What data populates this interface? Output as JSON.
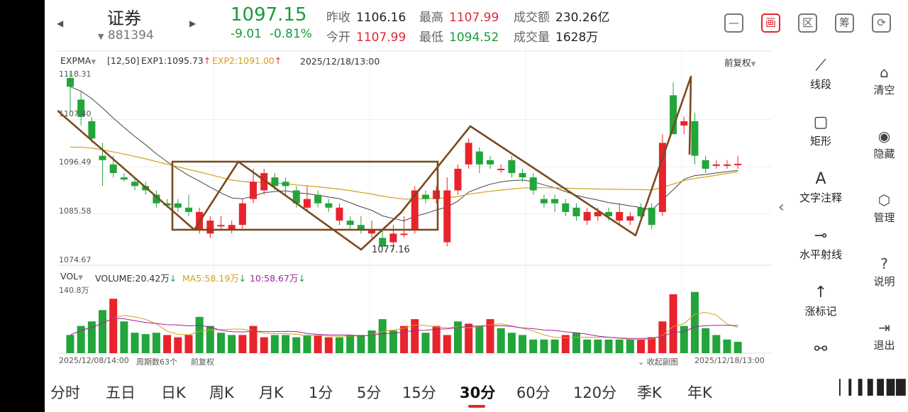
{
  "header": {
    "stock_name": "证券",
    "stock_code": "881394",
    "price": "1097.15",
    "change": "-9.01",
    "change_pct": "-0.81%",
    "quotes": [
      {
        "key": "昨收",
        "val": "1106.16",
        "color": "dark"
      },
      {
        "key": "最高",
        "val": "1107.99",
        "color": "red"
      },
      {
        "key": "成交额",
        "val": "230.26亿",
        "color": "dark"
      },
      {
        "key": "今开",
        "val": "1107.99",
        "color": "red"
      },
      {
        "key": "最低",
        "val": "1094.52",
        "color": "green"
      },
      {
        "key": "成交量",
        "val": "1628万",
        "color": "dark"
      }
    ],
    "icons": [
      {
        "name": "minimize-icon",
        "glyph": "—"
      },
      {
        "name": "draw-mode-icon",
        "glyph": "画"
      },
      {
        "name": "region-icon",
        "glyph": "区"
      },
      {
        "name": "chips-icon",
        "glyph": "筹"
      },
      {
        "name": "rotate-screen-icon",
        "glyph": "⟳"
      }
    ]
  },
  "chart_labels": {
    "indicator": "EXPMA",
    "params": "[12,50]",
    "exp1": "EXP1:1095.73",
    "exp2": "EXP2:1091.00",
    "datetime": "2025/12/18/13:00",
    "adjust": "前复权",
    "y_ticks": [
      "1118.31",
      "1107.40",
      "1096.49",
      "1085.58",
      "1074.67"
    ],
    "low_mark": "1077.16",
    "vol_indicator": "VOL",
    "volume": "VOLUME:20.42万",
    "ma5": "MA5:58.19万",
    "ma10": "10:58.67万",
    "vol_max": "140.8万",
    "start_date": "2025/12/08/14:00",
    "period_count": "周期数63个",
    "adjust2": "前复权",
    "collapse": "收起副图",
    "end_date": "2025/12/18/13:00"
  },
  "chart_data": {
    "type": "candlestick",
    "ylim": [
      1074.67,
      1118.31
    ],
    "candles": [
      [
        1117,
        1115,
        1118.3,
        1109
      ],
      [
        1112,
        1108,
        1114,
        1106
      ],
      [
        1107,
        1103,
        1108,
        1102
      ],
      [
        1099,
        1098,
        1102,
        1092
      ],
      [
        1097,
        1095,
        1099,
        1094
      ],
      [
        1094,
        1093.5,
        1095,
        1093
      ],
      [
        1093,
        1092,
        1094,
        1091
      ],
      [
        1092,
        1091,
        1093,
        1090
      ],
      [
        1090,
        1088,
        1091,
        1087
      ],
      [
        1088,
        1087.5,
        1089,
        1087
      ],
      [
        1088,
        1087,
        1089,
        1086
      ],
      [
        1087,
        1086,
        1090,
        1085
      ],
      [
        1082,
        1086,
        1087,
        1081
      ],
      [
        1081,
        1084,
        1085,
        1080
      ],
      [
        1083,
        1083,
        1085,
        1082
      ],
      [
        1082,
        1083,
        1084,
        1081
      ],
      [
        1083,
        1088,
        1089,
        1082
      ],
      [
        1089,
        1093,
        1096,
        1088
      ],
      [
        1091,
        1095,
        1096,
        1090
      ],
      [
        1094,
        1092,
        1095,
        1091
      ],
      [
        1093,
        1092,
        1094,
        1090
      ],
      [
        1091,
        1088,
        1092,
        1087
      ],
      [
        1087,
        1089,
        1092,
        1086
      ],
      [
        1090,
        1088,
        1091,
        1087
      ],
      [
        1088,
        1087,
        1089,
        1086
      ],
      [
        1084,
        1087,
        1088,
        1083
      ],
      [
        1084,
        1083,
        1085,
        1082
      ],
      [
        1083,
        1082,
        1085,
        1081
      ],
      [
        1081,
        1082,
        1084,
        1080
      ],
      [
        1080,
        1078,
        1082,
        1078
      ],
      [
        1079,
        1081,
        1083,
        1077.2
      ],
      [
        1081,
        1081,
        1085,
        1080
      ],
      [
        1082,
        1091,
        1092,
        1081
      ],
      [
        1090,
        1089,
        1091,
        1088
      ],
      [
        1089,
        1091,
        1092,
        1088
      ],
      [
        1079,
        1091,
        1094,
        1078
      ],
      [
        1091,
        1096,
        1097,
        1090
      ],
      [
        1097,
        1102,
        1103,
        1096
      ],
      [
        1100,
        1097,
        1101,
        1095
      ],
      [
        1098,
        1097,
        1099,
        1096
      ],
      [
        1096,
        1096,
        1097,
        1095
      ],
      [
        1098,
        1095,
        1099,
        1094
      ],
      [
        1095,
        1094,
        1096,
        1093
      ],
      [
        1094,
        1091,
        1095,
        1090
      ],
      [
        1089,
        1088,
        1090,
        1087
      ],
      [
        1089,
        1088,
        1090,
        1086
      ],
      [
        1088,
        1086,
        1089,
        1085
      ],
      [
        1087,
        1085,
        1088,
        1084
      ],
      [
        1084,
        1086,
        1087,
        1083
      ],
      [
        1085,
        1086,
        1087,
        1084
      ],
      [
        1086,
        1085,
        1087,
        1084
      ],
      [
        1084,
        1086,
        1088,
        1083
      ],
      [
        1084,
        1085,
        1086,
        1083
      ],
      [
        1087,
        1085,
        1088,
        1084
      ],
      [
        1087,
        1083,
        1088,
        1082
      ],
      [
        1086,
        1102,
        1104,
        1085
      ],
      [
        1113,
        1104,
        1116,
        1104
      ],
      [
        1106,
        1107,
        1108,
        1104
      ],
      [
        1107,
        1099,
        1109,
        1097
      ],
      [
        1098,
        1096,
        1099,
        1095
      ],
      [
        1097,
        1097,
        1098,
        1096
      ],
      [
        1097,
        1097,
        1098,
        1096
      ],
      [
        1097,
        1097.15,
        1099,
        1096
      ]
    ],
    "volume_max": 140.8,
    "volume": [
      40,
      60,
      70,
      95,
      120,
      70,
      45,
      42,
      45,
      40,
      35,
      40,
      80,
      60,
      45,
      40,
      40,
      60,
      35,
      40,
      40,
      35,
      40,
      40,
      35,
      35,
      40,
      40,
      50,
      75,
      50,
      60,
      75,
      45,
      60,
      40,
      70,
      65,
      60,
      75,
      55,
      45,
      40,
      30,
      30,
      30,
      40,
      45,
      30,
      30,
      30,
      30,
      30,
      30,
      35,
      70,
      130,
      60,
      135,
      55,
      40,
      30,
      25
    ],
    "volume_colors": [
      "g",
      "g",
      "g",
      "g",
      "r",
      "g",
      "g",
      "g",
      "g",
      "r",
      "r",
      "r",
      "g",
      "g",
      "g",
      "g",
      "r",
      "r",
      "r",
      "g",
      "g",
      "g",
      "g",
      "r",
      "r",
      "g",
      "g",
      "g",
      "g",
      "g",
      "g",
      "r",
      "r",
      "g",
      "r",
      "r",
      "g",
      "r",
      "g",
      "r",
      "g",
      "g",
      "g",
      "g",
      "g",
      "g",
      "r",
      "g",
      "g",
      "g",
      "g",
      "g",
      "g",
      "r",
      "r",
      "r",
      "r",
      "g",
      "g",
      "g",
      "g",
      "g",
      "g"
    ]
  },
  "draw_tools": [
    {
      "name": "line-segment-tool",
      "icon": "⟋",
      "label": "线段"
    },
    {
      "name": "rectangle-tool",
      "icon": "▢",
      "label": "矩形"
    },
    {
      "name": "text-note-tool",
      "icon": "A",
      "label": "文字注释"
    },
    {
      "name": "horizontal-ray-tool",
      "icon": "⊸",
      "label": "水平射线"
    },
    {
      "name": "up-mark-tool",
      "icon": "↑",
      "label": "涨标记"
    },
    {
      "name": "extra-tool",
      "icon": "⚯",
      "label": ""
    }
  ],
  "side_actions": [
    {
      "name": "clear",
      "icon": "⌂",
      "label": "清空"
    },
    {
      "name": "hide",
      "icon": "◉",
      "label": "隐藏"
    },
    {
      "name": "manage",
      "icon": "⬡",
      "label": "管理"
    },
    {
      "name": "help",
      "icon": "?",
      "label": "说明"
    },
    {
      "name": "exit",
      "icon": "⇥",
      "label": "退出"
    }
  ],
  "periods": [
    "分时",
    "五日",
    "日K",
    "周K",
    "月K",
    "1分",
    "5分",
    "15分",
    "30分",
    "60分",
    "120分",
    "季K",
    "年K"
  ],
  "active_period": "30分",
  "colors": {
    "up": "#e8232c",
    "down": "#22a53a",
    "exp1": "#444444",
    "exp2": "#d4a017",
    "draw": "#7a4a1e"
  }
}
